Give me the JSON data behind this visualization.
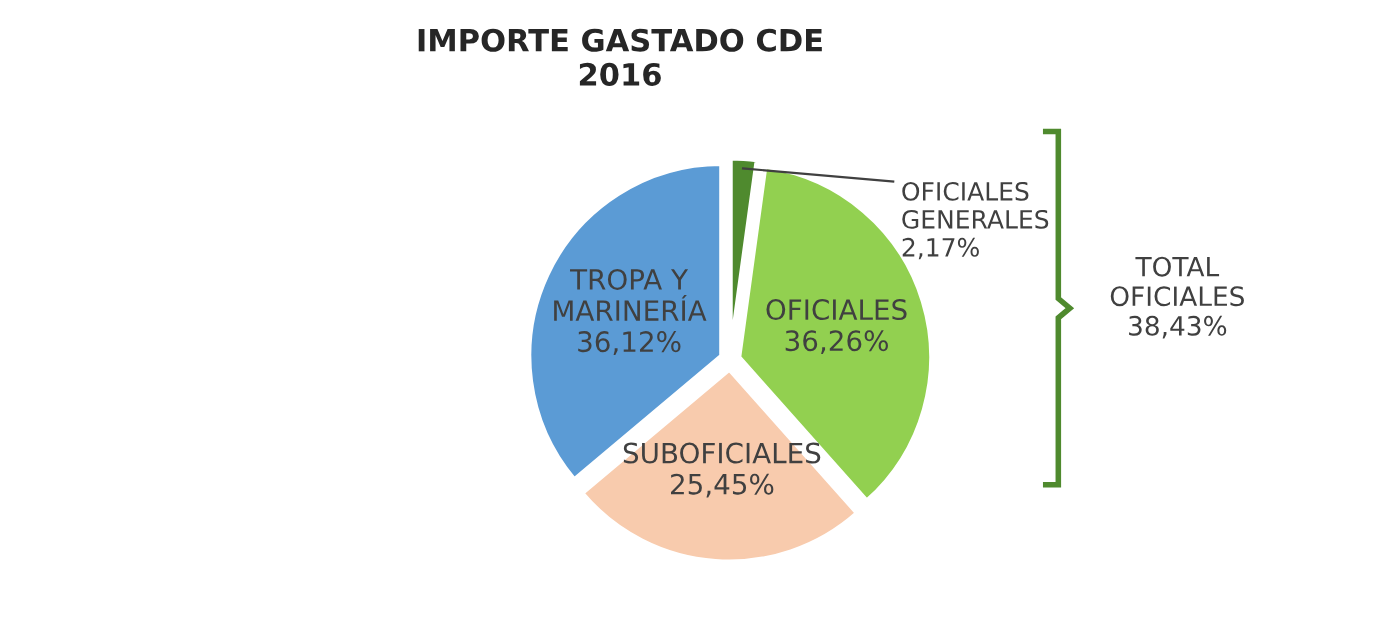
{
  "chart_data": {
    "type": "pie",
    "title": "IMPORTE GASTADO CDE\n2016",
    "categories": [
      "OFICIALES\nGENERALES",
      "OFICIALES",
      "SUBOFICIALES",
      "TROPA Y\nMARINERÍA"
    ],
    "values": [
      2.17,
      36.26,
      25.45,
      36.12
    ],
    "colors": [
      "#4f8a2e",
      "#92d050",
      "#f8cbad",
      "#5b9bd5"
    ],
    "value_labels": [
      "2,17%",
      "36,26%",
      "25,45%",
      "36,12%"
    ],
    "annotations": [
      "TOTAL\nOFICIALES\n38,43%"
    ],
    "legend": false
  }
}
